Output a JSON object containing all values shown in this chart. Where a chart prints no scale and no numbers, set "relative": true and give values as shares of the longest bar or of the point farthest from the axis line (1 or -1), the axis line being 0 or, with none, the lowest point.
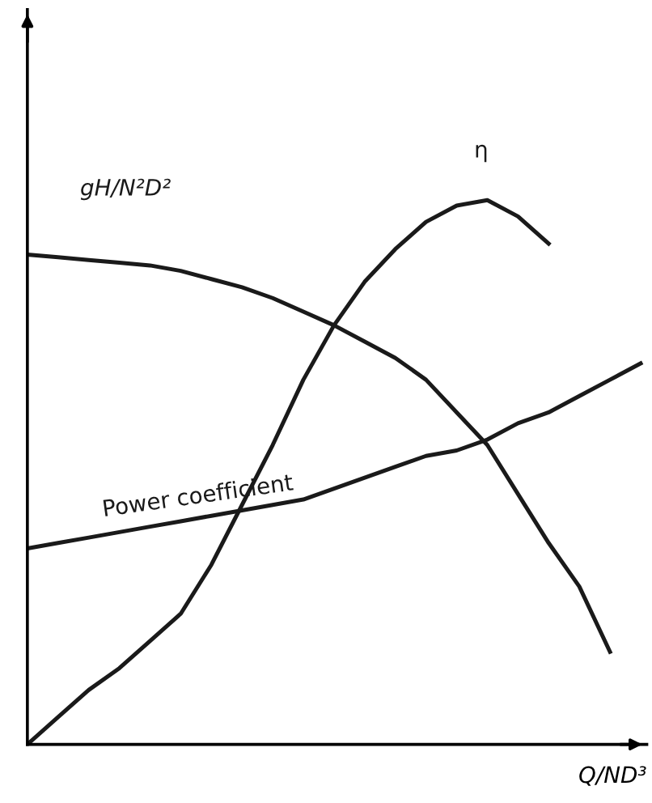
{
  "chart_data": {
    "type": "line",
    "relative": true,
    "xlabel": "Q/ND³",
    "legend": false,
    "marker": "none",
    "line_style": "solid",
    "categories": [
      null,
      null,
      null,
      null,
      null,
      null,
      null,
      null,
      null,
      null,
      null,
      null,
      null,
      null,
      null,
      null,
      null,
      null,
      null,
      null,
      null
    ],
    "series": [
      {
        "name": "gH/N²D²",
        "color": "#1a1a1a",
        "values": [
          0.9,
          0.895,
          0.89,
          0.885,
          0.88,
          0.87,
          0.855,
          0.84,
          0.82,
          0.795,
          0.77,
          0.74,
          0.71,
          0.67,
          0.61,
          0.55,
          0.46,
          0.37,
          0.29,
          0.17,
          null
        ]
      },
      {
        "name": "η",
        "color": "#1a1a1a",
        "values": [
          0,
          0.05,
          0.1,
          0.14,
          0.19,
          0.24,
          0.33,
          0.44,
          0.55,
          0.67,
          0.77,
          0.85,
          0.91,
          0.96,
          0.99,
          1.0,
          0.97,
          0.92,
          null,
          null,
          null
        ]
      },
      {
        "name": "Power coefficient",
        "color": "#1a1a1a",
        "values": [
          0.36,
          0.37,
          0.38,
          0.39,
          0.4,
          0.41,
          0.42,
          0.43,
          0.44,
          0.45,
          0.47,
          0.49,
          0.51,
          0.53,
          0.54,
          0.56,
          0.59,
          0.61,
          0.64,
          0.67,
          0.7
        ]
      }
    ]
  }
}
